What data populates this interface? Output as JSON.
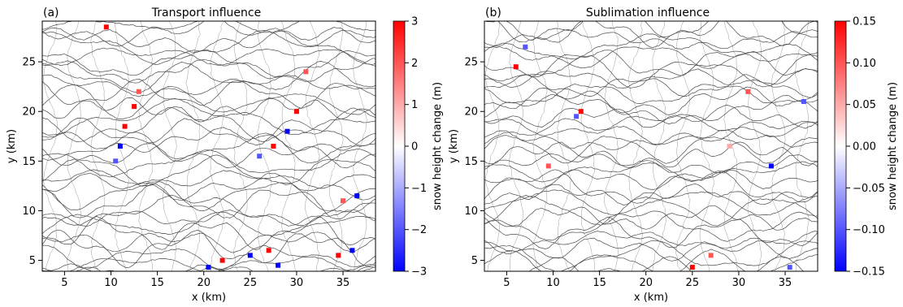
{
  "panels": [
    {
      "label": "(a)",
      "title": "Transport influence",
      "xlabel": "x (km)",
      "ylabel": "y (km)",
      "colorbar_label": "snow height change (m)",
      "colorbar_ticks": [
        "3",
        "2",
        "1",
        "0",
        "−1",
        "−2",
        "−3"
      ]
    },
    {
      "label": "(b)",
      "title": "Sublimation influence",
      "xlabel": "x (km)",
      "ylabel": "y (km)",
      "colorbar_label": "snow height change (m)",
      "colorbar_ticks": [
        "0.15",
        "0.10",
        "0.05",
        "0.00",
        "−0.05",
        "−0.10",
        "−0.15"
      ]
    }
  ],
  "chart_data": [
    {
      "type": "heatmap",
      "title": "Transport influence",
      "panel_label": "(a)",
      "xlabel": "x (km)",
      "ylabel": "y (km)",
      "xlim": [
        2.6,
        38.5
      ],
      "ylim": [
        3.9,
        29.1
      ],
      "xticks": [
        5,
        10,
        15,
        20,
        25,
        30,
        35
      ],
      "yticks": [
        5,
        10,
        15,
        20,
        25
      ],
      "colorbar": {
        "label": "snow height change (m)",
        "range": [
          -3,
          3
        ],
        "ticks": [
          3,
          2,
          1,
          0,
          -1,
          -2,
          -3
        ],
        "colors": [
          "#0000ff",
          "#ffffff",
          "#ff0000"
        ]
      },
      "contour_color": "#4a4a4a",
      "hotspots": [
        {
          "x": 11.5,
          "y": 18.5,
          "value": 3
        },
        {
          "x": 11.0,
          "y": 16.5,
          "value": -3
        },
        {
          "x": 12.5,
          "y": 20.5,
          "value": 3
        },
        {
          "x": 10.5,
          "y": 15.0,
          "value": -2
        },
        {
          "x": 13.0,
          "y": 22.0,
          "value": 2
        },
        {
          "x": 27.5,
          "y": 16.5,
          "value": 3
        },
        {
          "x": 29.0,
          "y": 18.0,
          "value": -3
        },
        {
          "x": 30.0,
          "y": 20.0,
          "value": 3
        },
        {
          "x": 31.0,
          "y": 24.0,
          "value": 2
        },
        {
          "x": 26.0,
          "y": 15.5,
          "value": -2
        },
        {
          "x": 25.0,
          "y": 5.5,
          "value": -3
        },
        {
          "x": 27.0,
          "y": 6.0,
          "value": 3
        },
        {
          "x": 28.0,
          "y": 4.5,
          "value": -3
        },
        {
          "x": 22.0,
          "y": 5.0,
          "value": 3
        },
        {
          "x": 20.5,
          "y": 4.3,
          "value": -3
        },
        {
          "x": 34.5,
          "y": 5.5,
          "value": 3
        },
        {
          "x": 36.0,
          "y": 6.0,
          "value": -3
        },
        {
          "x": 36.5,
          "y": 11.5,
          "value": -3
        },
        {
          "x": 35.0,
          "y": 11.0,
          "value": 2
        },
        {
          "x": 9.5,
          "y": 28.5,
          "value": 3
        }
      ]
    },
    {
      "type": "heatmap",
      "title": "Sublimation influence",
      "panel_label": "(b)",
      "xlabel": "x (km)",
      "ylabel": "y (km)",
      "xlim": [
        2.6,
        38.5
      ],
      "ylim": [
        3.9,
        29.1
      ],
      "xticks": [
        5,
        10,
        15,
        20,
        25,
        30,
        35
      ],
      "yticks": [
        5,
        10,
        15,
        20,
        25
      ],
      "colorbar": {
        "label": "snow height change (m)",
        "range": [
          -0.15,
          0.15
        ],
        "ticks": [
          0.15,
          0.1,
          0.05,
          0.0,
          -0.05,
          -0.1,
          -0.15
        ],
        "colors": [
          "#0000ff",
          "#ffffff",
          "#ff0000"
        ]
      },
      "contour_color": "#4a4a4a",
      "hotspots": [
        {
          "x": 13.0,
          "y": 20.0,
          "value": 0.15
        },
        {
          "x": 12.5,
          "y": 19.5,
          "value": -0.1
        },
        {
          "x": 6.0,
          "y": 24.5,
          "value": 0.15
        },
        {
          "x": 7.0,
          "y": 26.5,
          "value": -0.1
        },
        {
          "x": 9.5,
          "y": 14.5,
          "value": 0.1
        },
        {
          "x": 33.5,
          "y": 14.5,
          "value": -0.15
        },
        {
          "x": 25.0,
          "y": 4.3,
          "value": 0.15
        },
        {
          "x": 27.0,
          "y": 5.5,
          "value": 0.1
        },
        {
          "x": 31.0,
          "y": 22.0,
          "value": 0.1
        },
        {
          "x": 29.0,
          "y": 16.5,
          "value": 0.05
        },
        {
          "x": 37.0,
          "y": 21.0,
          "value": -0.1
        },
        {
          "x": 35.5,
          "y": 4.3,
          "value": -0.1
        }
      ]
    }
  ]
}
